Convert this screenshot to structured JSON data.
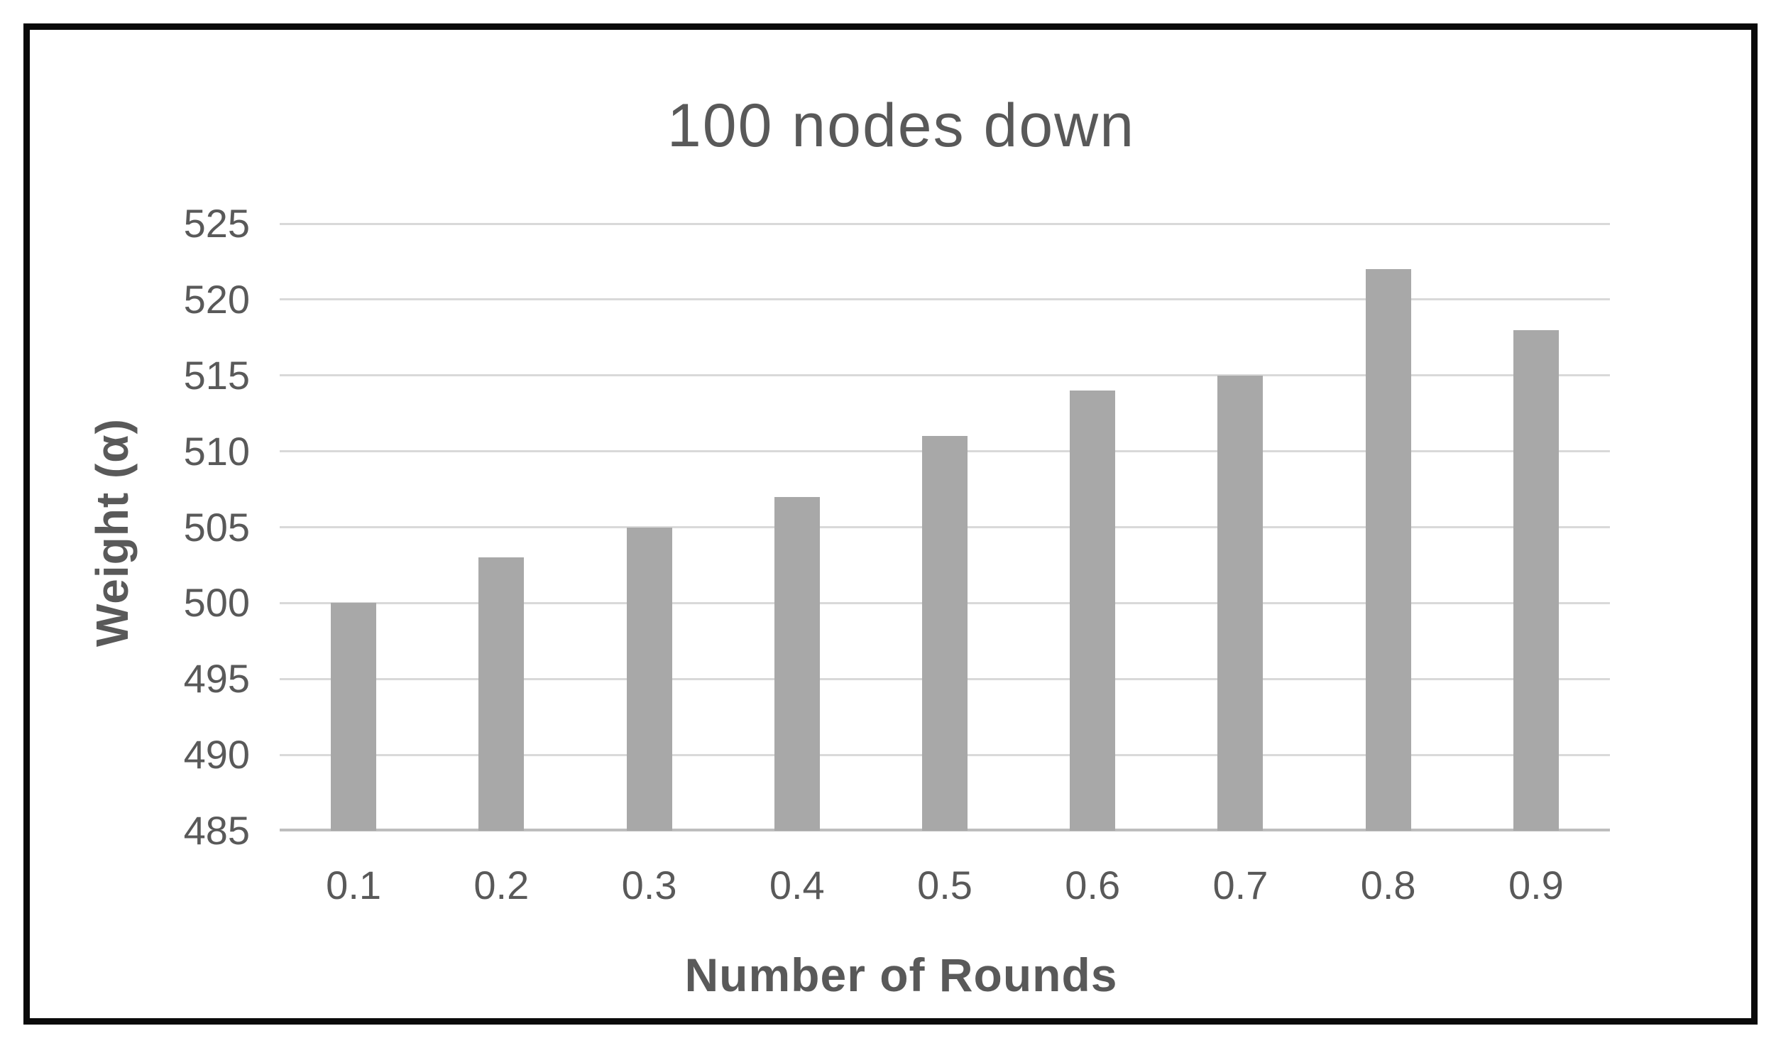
{
  "chart_data": {
    "type": "bar",
    "title": "100 nodes down",
    "xlabel": "Number of Rounds",
    "ylabel": "Weight (α)",
    "categories": [
      "0.1",
      "0.2",
      "0.3",
      "0.4",
      "0.5",
      "0.6",
      "0.7",
      "0.8",
      "0.9"
    ],
    "values": [
      500,
      503,
      505,
      507,
      511,
      514,
      515,
      522,
      518
    ],
    "ylim": [
      485,
      525
    ],
    "ytick_step": 5,
    "yticks": [
      485,
      490,
      495,
      500,
      505,
      510,
      515,
      520,
      525
    ],
    "grid": "horizontal",
    "legend": "none",
    "colors": {
      "bar": "#a8a8a8",
      "text": "#595959",
      "gridline": "#d9d9d9",
      "axis_line": "#bdbdbd",
      "frame_border": "#0a0a0a",
      "background": "#ffffff"
    }
  }
}
